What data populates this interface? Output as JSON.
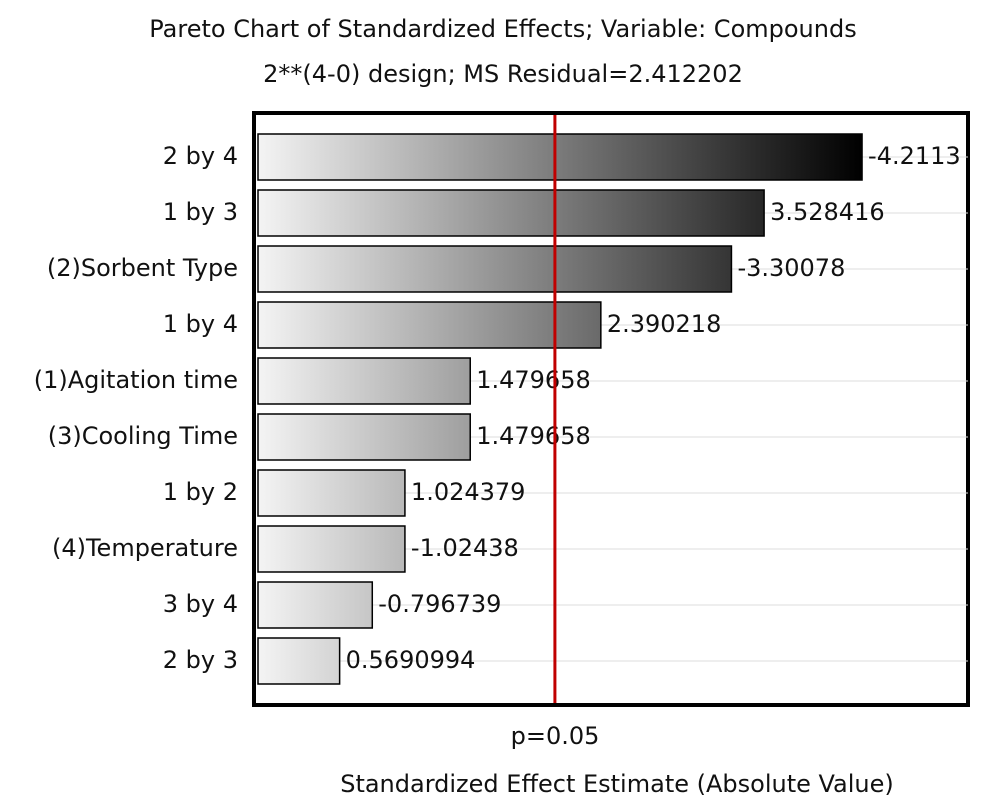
{
  "chart_data": {
    "type": "bar",
    "orientation": "horizontal",
    "title": "Pareto Chart of Standardized Effects; Variable: Compounds",
    "subtitle": "2**(4-0) design; MS Residual=2.412202",
    "x_label": "Standardized Effect Estimate (Absolute Value)",
    "categories": [
      "2 by 4",
      "1 by 3",
      "(2)Sorbent Type",
      "1 by 4",
      "(1)Agitation time",
      "(3)Cooling Time",
      "1 by 2",
      "(4)Temperature",
      "3 by 4",
      "2 by 3"
    ],
    "values": [
      4.2113,
      3.528416,
      3.30078,
      2.390218,
      1.479658,
      1.479658,
      1.024379,
      1.02438,
      0.796739,
      0.5690994
    ],
    "value_labels": [
      "-4.2113",
      "3.528416",
      "-3.30078",
      "2.390218",
      "1.479658",
      "1.479658",
      "1.024379",
      "-1.02438",
      "-0.796739",
      "0.5690994"
    ],
    "gradient": [
      "#f4f4f4",
      "#000000"
    ],
    "xlim": [
      0,
      4.95
    ],
    "reference_line": {
      "value": 2.07,
      "label": "p=0.05",
      "color": "#c00000"
    }
  }
}
